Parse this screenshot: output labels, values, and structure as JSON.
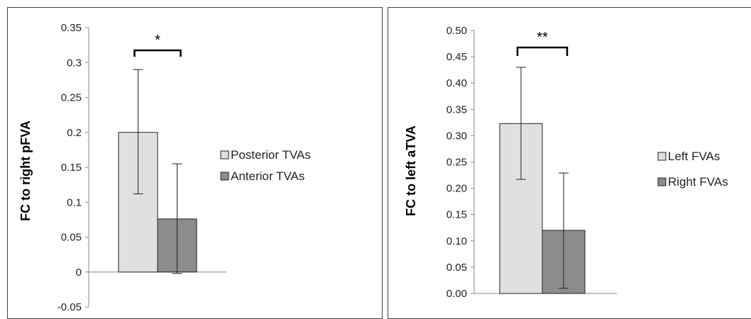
{
  "chart_data": [
    {
      "type": "bar",
      "ylabel": "FC to right pFVA",
      "ylim": [
        -0.05,
        0.35
      ],
      "yticks": [
        "0.35",
        "0.3",
        "0.25",
        "0.2",
        "0.15",
        "0.1",
        "0.05",
        "0",
        "-0.05"
      ],
      "ytick_values": [
        0.35,
        0.3,
        0.25,
        0.2,
        0.15,
        0.1,
        0.05,
        0,
        -0.05
      ],
      "series": [
        {
          "name": "Posterior TVAs",
          "value": 0.2,
          "err_low": 0.112,
          "err_high": 0.29,
          "color": "#e0e0e0"
        },
        {
          "name": "Anterior TVAs",
          "value": 0.076,
          "err_low": -0.002,
          "err_high": 0.155,
          "color": "#8c8c8c"
        }
      ],
      "significance": "*",
      "legend": "right",
      "grid": false
    },
    {
      "type": "bar",
      "ylabel": "FC to left aTVA",
      "ylim": [
        0.0,
        0.5
      ],
      "yticks": [
        "0.50",
        "0.45",
        "0.40",
        "0.35",
        "0.30",
        "0.25",
        "0.20",
        "0.15",
        "0.10",
        "0.05",
        "0.00"
      ],
      "ytick_values": [
        0.5,
        0.45,
        0.4,
        0.35,
        0.3,
        0.25,
        0.2,
        0.15,
        0.1,
        0.05,
        0.0
      ],
      "series": [
        {
          "name": "Left FVAs",
          "value": 0.323,
          "err_low": 0.217,
          "err_high": 0.43,
          "color": "#e0e0e0"
        },
        {
          "name": "Right FVAs",
          "value": 0.12,
          "err_low": 0.01,
          "err_high": 0.229,
          "color": "#8c8c8c"
        }
      ],
      "significance": "**",
      "legend": "right",
      "grid": false
    }
  ]
}
